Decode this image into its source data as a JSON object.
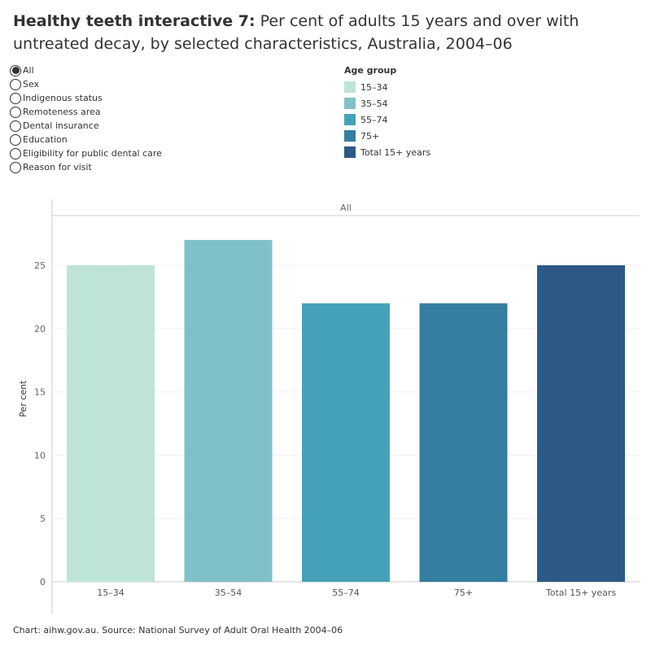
{
  "title": {
    "bold": "Healthy teeth interactive 7:",
    "rest": " Per cent of adults 15 years and over with untreated decay, by selected characteristics, Australia, 2004–06"
  },
  "radio_options": [
    {
      "label": "All",
      "selected": true
    },
    {
      "label": "Sex",
      "selected": false
    },
    {
      "label": "Indigenous status",
      "selected": false
    },
    {
      "label": "Remoteness area",
      "selected": false
    },
    {
      "label": "Dental insurance",
      "selected": false
    },
    {
      "label": "Education",
      "selected": false
    },
    {
      "label": "Eligibility for public dental care",
      "selected": false
    },
    {
      "label": "Reason for visit",
      "selected": false
    }
  ],
  "legend": {
    "title": "Age group",
    "items": [
      {
        "label": "15–34",
        "color": "#bee4d9"
      },
      {
        "label": "35–54",
        "color": "#80c1c9"
      },
      {
        "label": "55–74",
        "color": "#45a1b9"
      },
      {
        "label": "75+",
        "color": "#347ea0"
      },
      {
        "label": "Total 15+ years",
        "color": "#2c5985"
      }
    ]
  },
  "chart_data": {
    "type": "bar",
    "panel_header": "All",
    "categories": [
      "15–34",
      "35–54",
      "55–74",
      "75+",
      "Total 15+ years"
    ],
    "values": [
      25,
      27,
      22,
      22,
      25
    ],
    "colors": [
      "#bee4d9",
      "#80c1c9",
      "#45a1b9",
      "#347ea0",
      "#2c5985"
    ],
    "ylabel": "Per cent",
    "xlabel": "",
    "ylim": [
      0,
      29
    ],
    "yticks": [
      0,
      5,
      10,
      15,
      20,
      25
    ],
    "grid": true
  },
  "footer": "Chart: aihw.gov.au. Source: National Survey of Adult Oral Health 2004–06"
}
